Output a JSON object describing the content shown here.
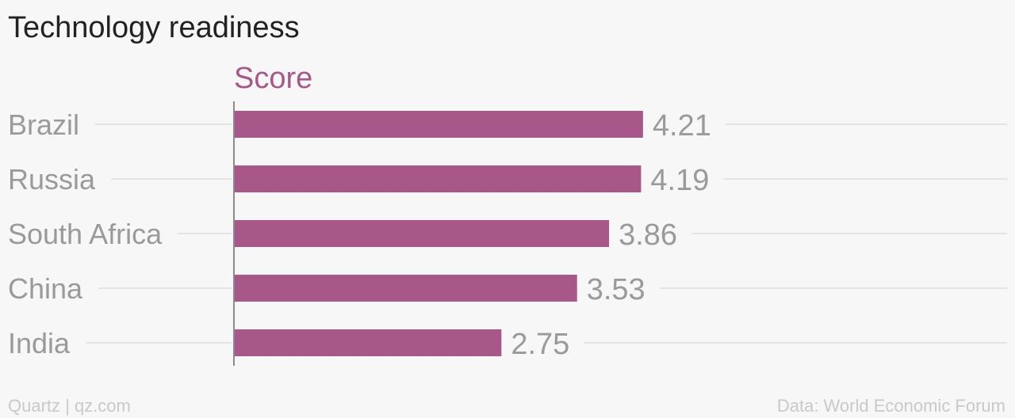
{
  "chart_data": {
    "type": "bar",
    "orientation": "horizontal",
    "title": "Technology readiness",
    "series": [
      {
        "name": "Score",
        "color": "#a85888",
        "values": [
          4.21,
          4.19,
          3.86,
          3.53,
          2.75
        ]
      }
    ],
    "categories": [
      "Brazil",
      "Russia",
      "South Africa",
      "China",
      "India"
    ],
    "data_labels": [
      "4.21",
      "4.19",
      "3.86",
      "3.53",
      "2.75"
    ],
    "xlim": [
      0,
      8
    ],
    "grid": false,
    "legend": "none",
    "colors": {
      "category_label": "#9a9a9a",
      "value_label": "#9a9a9a",
      "guide_line": "#e4e4e4",
      "axis_line": "#8a8a8a"
    }
  },
  "footer": {
    "source_left": "Quartz | qz.com",
    "source_right": "Data: World Economic Forum"
  }
}
